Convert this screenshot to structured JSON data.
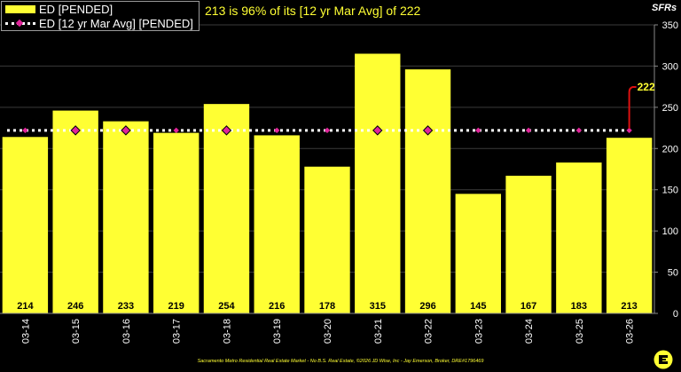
{
  "legend": {
    "bar_label": "ED [PENDED]",
    "line_label": "ED [12 yr Mar Avg] [PENDED]"
  },
  "subtitle": "213 is 96% of its [12 yr Mar Avg] of 222",
  "y_axis_title": "SFRs",
  "footer": "Sacramento Metro Residential Real Estate Market - No B.S. Real Estate, ©2026 JD Wise, Inc - Jay Emerson, Broker, DRE#1796469",
  "colors": {
    "bar": "#ffff33",
    "average_line": "#ffffff",
    "marker": "#e0249a",
    "callout": "#dd1111",
    "callout_text": "#ffff33",
    "grid": "#3a3a3a"
  },
  "chart_data": {
    "type": "bar",
    "categories": [
      "03-14",
      "03-15",
      "03-16",
      "03-17",
      "03-18",
      "03-19",
      "03-20",
      "03-21",
      "03-22",
      "03-23",
      "03-24",
      "03-25",
      "03-26"
    ],
    "series": [
      {
        "name": "ED [PENDED]",
        "type": "bar",
        "values": [
          214,
          246,
          233,
          219,
          254,
          216,
          178,
          315,
          296,
          145,
          167,
          183,
          213
        ]
      },
      {
        "name": "ED [12 yr Mar Avg] [PENDED]",
        "type": "line",
        "values": [
          222,
          222,
          222,
          222,
          222,
          222,
          222,
          222,
          222,
          222,
          222,
          222,
          222
        ]
      }
    ],
    "highlighted_markers": [
      "03-15",
      "03-16",
      "03-18",
      "03-21",
      "03-22"
    ],
    "callout": {
      "category": "03-26",
      "value": 222,
      "label": "222"
    },
    "ylabel": "SFRs",
    "ylim": [
      0,
      350
    ],
    "yticks": [
      0,
      50,
      100,
      150,
      200,
      250,
      300,
      350
    ],
    "grid": true,
    "legend_position": "top-left"
  }
}
